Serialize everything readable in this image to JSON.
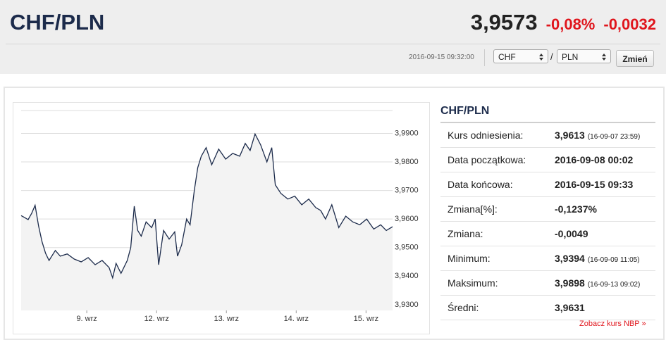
{
  "header": {
    "title": "CHF/PLN",
    "price": "3,9573",
    "change_pct": "-0,08%",
    "change_abs": "-0,0032",
    "timestamp": "2016-09-15 09:32:00",
    "from_currency": "CHF",
    "separator": "/",
    "to_currency": "PLN",
    "button": "Zmień"
  },
  "chart_data": {
    "type": "line",
    "color": "#1c2b4b",
    "x": [
      0.06,
      0.11,
      0.16,
      0.21,
      0.26,
      0.31,
      0.36,
      0.41,
      0.46,
      0.55,
      0.62,
      0.72,
      0.82,
      0.92,
      1.02,
      1.12,
      1.22,
      1.32,
      1.37,
      1.42,
      1.49,
      1.58,
      1.63,
      1.68,
      1.73,
      1.78,
      1.85,
      1.93,
      1.98,
      2.03,
      2.1,
      2.18,
      2.26,
      2.3,
      2.36,
      2.43,
      2.48,
      2.54,
      2.59,
      2.64,
      2.71,
      2.79,
      2.89,
      2.99,
      3.09,
      3.19,
      3.27,
      3.34,
      3.41,
      3.49,
      3.58,
      3.65,
      3.7,
      3.78,
      3.88,
      3.98,
      4.08,
      4.18,
      4.28,
      4.35,
      4.42,
      4.51,
      4.61,
      4.71,
      4.81,
      4.91,
      5.01,
      5.11,
      5.21,
      5.29,
      5.38
    ],
    "values": [
      3.9612,
      3.9605,
      3.9598,
      3.962,
      3.9648,
      3.9575,
      3.952,
      3.948,
      3.9455,
      3.949,
      3.947,
      3.9478,
      3.946,
      3.945,
      3.9465,
      3.944,
      3.9455,
      3.943,
      3.9394,
      3.9445,
      3.941,
      3.9455,
      3.95,
      3.9645,
      3.956,
      3.954,
      3.959,
      3.957,
      3.96,
      3.944,
      3.956,
      3.953,
      3.9555,
      3.947,
      3.951,
      3.96,
      3.958,
      3.97,
      3.978,
      3.982,
      3.985,
      3.979,
      3.9845,
      3.981,
      3.983,
      3.982,
      3.9865,
      3.984,
      3.9898,
      3.986,
      3.98,
      3.985,
      3.972,
      3.969,
      3.967,
      3.968,
      3.965,
      3.967,
      3.964,
      3.963,
      3.96,
      3.965,
      3.957,
      3.961,
      3.959,
      3.958,
      3.96,
      3.9565,
      3.958,
      3.956,
      3.9573
    ],
    "xlim": [
      0.06,
      5.38
    ],
    "xticks": [
      {
        "value": 1,
        "label": "9. wrz"
      },
      {
        "value": 2,
        "label": "12. wrz"
      },
      {
        "value": 3,
        "label": "13. wrz"
      },
      {
        "value": 4,
        "label": "14. wrz"
      },
      {
        "value": 5,
        "label": "15. wrz"
      }
    ],
    "ylim": [
      3.928,
      3.998
    ],
    "yticks": [
      {
        "value": 3.93,
        "label": "3,9300"
      },
      {
        "value": 3.94,
        "label": "3,9400"
      },
      {
        "value": 3.95,
        "label": "3,9500"
      },
      {
        "value": 3.96,
        "label": "3,9600"
      },
      {
        "value": 3.97,
        "label": "3,9700"
      },
      {
        "value": 3.98,
        "label": "3,9800"
      },
      {
        "value": 3.99,
        "label": "3,9900"
      }
    ],
    "grid": true
  },
  "stats": {
    "title": "CHF/PLN",
    "rows": [
      {
        "label": "Kurs odniesienia:",
        "value": "3,9613",
        "note": "(16-09-07 23:59)"
      },
      {
        "label": "Data początkowa:",
        "value": "2016-09-08 00:02"
      },
      {
        "label": "Data końcowa:",
        "value": "2016-09-15 09:33"
      },
      {
        "label": "Zmiana[%]:",
        "value": "-0,1237%"
      },
      {
        "label": "Zmiana:",
        "value": "-0,0049"
      },
      {
        "label": "Minimum:",
        "value": "3,9394",
        "note": "(16-09-09 11:05)"
      },
      {
        "label": "Maksimum:",
        "value": "3,9898",
        "note": "(16-09-13 09:02)"
      },
      {
        "label": "Średni:",
        "value": "3,9631"
      }
    ]
  },
  "footer_link": "Zobacz kurs NBP »"
}
